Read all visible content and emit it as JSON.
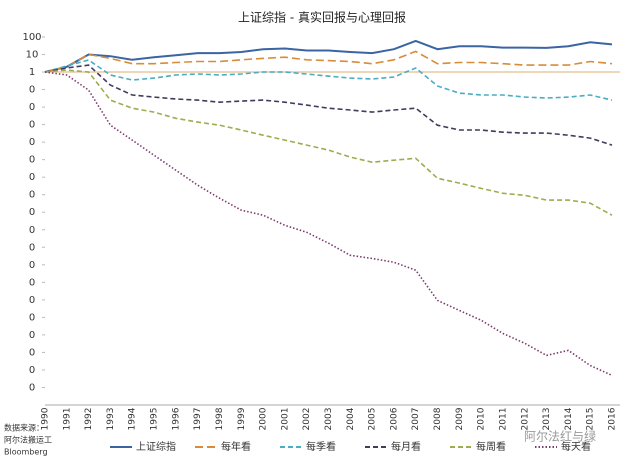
{
  "chart_data": {
    "type": "line",
    "title": "上证综指 - 真实回报与心理回报",
    "categories": [
      "1990",
      "1991",
      "1992",
      "1993",
      "1994",
      "1995",
      "1996",
      "1997",
      "1998",
      "1999",
      "2000",
      "2001",
      "2002",
      "2003",
      "2004",
      "2005",
      "2006",
      "2007",
      "2008",
      "2009",
      "2010",
      "2011",
      "2012",
      "2013",
      "2014",
      "2015",
      "2016"
    ],
    "log_scale": true,
    "ylim": [
      1e-19,
      100
    ],
    "axis_cross": 1,
    "yticks": [
      100,
      10,
      1,
      {
        "value": 0.1,
        "label": "0"
      },
      {
        "value": 0.01,
        "label": "0"
      },
      {
        "value": 0.001,
        "label": "0"
      },
      {
        "value": 0.0001,
        "label": "0"
      },
      {
        "value": 1e-05,
        "label": "0"
      },
      {
        "value": 1e-06,
        "label": "0"
      },
      {
        "value": 1e-07,
        "label": "0"
      },
      {
        "value": 1e-08,
        "label": "0"
      },
      {
        "value": 1e-09,
        "label": "0"
      },
      {
        "value": 1e-10,
        "label": "0"
      },
      {
        "value": 1e-11,
        "label": "0"
      },
      {
        "value": 1e-12,
        "label": "0"
      },
      {
        "value": 1e-13,
        "label": "0"
      },
      {
        "value": 1e-14,
        "label": "0"
      },
      {
        "value": 1e-15,
        "label": "0"
      },
      {
        "value": 1e-16,
        "label": "0"
      },
      {
        "value": 1e-17,
        "label": "0"
      },
      {
        "value": 1e-18,
        "label": "0"
      }
    ],
    "series": [
      {
        "name": "上证综指",
        "color": "#3b64a3",
        "style": "solid",
        "values": [
          1,
          2,
          10,
          8,
          5,
          7,
          9,
          12,
          12,
          14,
          20,
          22,
          17,
          17,
          14,
          12,
          20,
          60,
          20,
          30,
          30,
          25,
          25,
          24,
          30,
          50,
          38
        ]
      },
      {
        "name": "每年看",
        "color": "#d98b3a",
        "style": "longdash",
        "values": [
          1,
          2,
          10,
          6,
          3,
          3,
          3.5,
          4,
          4,
          5,
          6,
          7,
          5,
          4.5,
          4,
          3,
          5,
          15,
          3,
          3.5,
          3.5,
          3,
          2.5,
          2.5,
          2.5,
          4,
          3
        ]
      },
      {
        "name": "每季看",
        "color": "#4bacc6",
        "style": "dash",
        "values": [
          1,
          2.2,
          4.9,
          0.68,
          0.35,
          0.45,
          0.68,
          0.77,
          0.68,
          0.77,
          1,
          1,
          0.77,
          0.59,
          0.45,
          0.4,
          0.52,
          1.7,
          0.16,
          0.063,
          0.049,
          0.049,
          0.037,
          0.033,
          0.037,
          0.049,
          0.025
        ]
      },
      {
        "name": "每月看",
        "color": "#3d3d5c",
        "style": "dash",
        "values": [
          1,
          1.7,
          2.5,
          0.18,
          0.049,
          0.037,
          0.029,
          0.025,
          0.019,
          0.022,
          0.025,
          0.019,
          0.013,
          0.0087,
          0.0068,
          0.0052,
          0.0068,
          0.0087,
          0.00093,
          0.00049,
          0.00049,
          0.00037,
          0.00033,
          0.00033,
          0.00025,
          0.00017,
          6.8e-05
        ]
      },
      {
        "name": "每周看",
        "color": "#9bae4e",
        "style": "dash",
        "values": [
          1,
          1.3,
          1,
          0.025,
          0.0087,
          0.0052,
          0.0023,
          0.0014,
          0.00093,
          0.00049,
          0.00025,
          0.00013,
          6.8e-05,
          3.5e-05,
          1.4e-05,
          7.2e-06,
          9.3e-06,
          1.2e-05,
          8.7e-07,
          4.6e-07,
          2.3e-07,
          1.2e-07,
          9.3e-08,
          4.9e-08,
          4.9e-08,
          3.3e-08,
          6.8e-09
        ]
      },
      {
        "name": "每天看",
        "color": "#7d3b6d",
        "style": "dotted",
        "values": [
          1,
          0.68,
          0.093,
          0.00093,
          0.00013,
          1.8e-05,
          2.5e-06,
          3.5e-07,
          6.3e-08,
          1.3e-08,
          6.8e-09,
          1.8e-09,
          7.2e-10,
          1.7e-10,
          3.5e-11,
          2.3e-11,
          1.4e-11,
          4.9e-12,
          9.3e-14,
          2.5e-14,
          6.8e-15,
          1.2e-15,
          3.3e-16,
          6.8e-17,
          1.3e-16,
          1.8e-17,
          4.9e-18
        ]
      }
    ],
    "source": [
      "数据来源：",
      "阿尔法搬运工",
      "Bloomberg"
    ],
    "watermark": "阿尔法红与绿"
  }
}
